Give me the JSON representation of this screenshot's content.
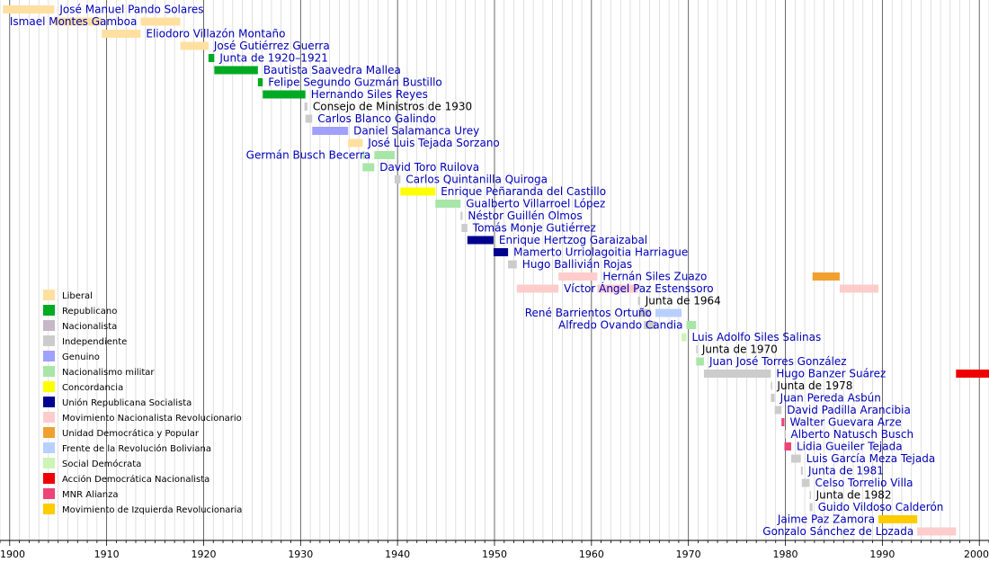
{
  "chart_data": {
    "type": "timeline",
    "x_range": [
      1899,
      2001
    ],
    "ticks": [
      {
        "value": 1900,
        "label": "1900"
      },
      {
        "value": 1910,
        "label": "1910"
      },
      {
        "value": 1920,
        "label": "1920"
      },
      {
        "value": 1930,
        "label": "1930"
      },
      {
        "value": 1940,
        "label": "1940"
      },
      {
        "value": 1950,
        "label": "1950"
      },
      {
        "value": 1960,
        "label": "1960"
      },
      {
        "value": 1970,
        "label": "1970"
      },
      {
        "value": 1980,
        "label": "1980"
      },
      {
        "value": 1990,
        "label": "1990"
      },
      {
        "value": 2000,
        "label": "2000"
      }
    ],
    "grid": "yearly minor, decade major",
    "legend": {
      "placement": "left",
      "items": [
        {
          "name": "Liberal",
          "color": "#ffe0a0"
        },
        {
          "name": "Republicano",
          "color": "#00aa22"
        },
        {
          "name": "Nacionalista",
          "color": "#c7b8c8"
        },
        {
          "name": "Independiente",
          "color": "#cccccc"
        },
        {
          "name": "Genuino",
          "color": "#a0a0ff"
        },
        {
          "name": "Nacionalismo militar",
          "color": "#a8e6a8"
        },
        {
          "name": "Concordancia",
          "color": "#ffff00"
        },
        {
          "name": "Unión Republicana Socialista",
          "color": "#000090"
        },
        {
          "name": "Movimiento Nacionalista Revolucionario",
          "color": "#ffcccc"
        },
        {
          "name": "Unidad Democrática y Popular",
          "color": "#f0a030"
        },
        {
          "name": "Frente de la Revolución Boliviana",
          "color": "#b8d0ff"
        },
        {
          "name": "Social Demócrata",
          "color": "#ccf5b8"
        },
        {
          "name": "Acción Democrática Nacionalista",
          "color": "#ee0000"
        },
        {
          "name": "MNR Alianza",
          "color": "#ee4477"
        },
        {
          "name": "Movimiento de Izquierda Revolucionaria",
          "color": "#ffcc00"
        }
      ]
    },
    "rows": [
      {
        "label": "José Manuel Pando Solares",
        "link": true,
        "periods": [
          {
            "start": 1899.3,
            "end": 1904.6,
            "color": "#ffe0a0"
          }
        ]
      },
      {
        "label": "Ismael Montes Gamboa",
        "link": true,
        "periods": [
          {
            "start": 1904.6,
            "end": 1909.5,
            "color": "#ffe0a0"
          },
          {
            "start": 1913.5,
            "end": 1917.6,
            "color": "#ffe0a0"
          }
        ]
      },
      {
        "label": "Eliodoro Villazón Montaño",
        "link": true,
        "periods": [
          {
            "start": 1909.5,
            "end": 1913.5,
            "color": "#ffe0a0"
          }
        ]
      },
      {
        "label": "José Gutiérrez Guerra",
        "link": true,
        "periods": [
          {
            "start": 1917.6,
            "end": 1920.5,
            "color": "#ffe0a0"
          }
        ]
      },
      {
        "label": "Junta de 1920–1921",
        "link": true,
        "periods": [
          {
            "start": 1920.5,
            "end": 1921.1,
            "color": "#00aa22"
          }
        ]
      },
      {
        "label": "Bautista Saavedra Mallea",
        "link": true,
        "periods": [
          {
            "start": 1921.1,
            "end": 1925.6,
            "color": "#00aa22"
          }
        ]
      },
      {
        "label": "Felipe Segundo Guzmán Bustillo",
        "link": true,
        "periods": [
          {
            "start": 1925.6,
            "end": 1926.1,
            "color": "#00aa22"
          }
        ]
      },
      {
        "label": "Hernando Siles Reyes",
        "link": true,
        "periods": [
          {
            "start": 1926.1,
            "end": 1930.5,
            "color": "#00aa22"
          }
        ]
      },
      {
        "label": "Consejo de Ministros de 1930",
        "link": false,
        "periods": [
          {
            "start": 1930.4,
            "end": 1930.7,
            "color": "#cccccc"
          }
        ]
      },
      {
        "label": "Carlos Blanco Galindo",
        "link": true,
        "periods": [
          {
            "start": 1930.5,
            "end": 1931.2,
            "color": "#cccccc"
          }
        ]
      },
      {
        "label": "Daniel Salamanca Urey",
        "link": true,
        "periods": [
          {
            "start": 1931.2,
            "end": 1934.9,
            "color": "#a0a0ff"
          }
        ]
      },
      {
        "label": "José Luis Tejada Sorzano",
        "link": true,
        "periods": [
          {
            "start": 1934.9,
            "end": 1936.4,
            "color": "#ffe0a0"
          }
        ]
      },
      {
        "label": "Germán Busch Becerra",
        "link": true,
        "periods": [
          {
            "start": 1936.4,
            "end": 1936.6,
            "color": "#a8e6a8"
          },
          {
            "start": 1937.6,
            "end": 1939.7,
            "color": "#a8e6a8"
          }
        ]
      },
      {
        "label": "David Toro Ruilova",
        "link": true,
        "periods": [
          {
            "start": 1936.4,
            "end": 1937.6,
            "color": "#a8e6a8"
          }
        ]
      },
      {
        "label": "Carlos Quintanilla Quiroga",
        "link": true,
        "periods": [
          {
            "start": 1939.7,
            "end": 1940.3,
            "color": "#cccccc"
          }
        ]
      },
      {
        "label": "Enrique Peñaranda del Castillo",
        "link": true,
        "periods": [
          {
            "start": 1940.3,
            "end": 1943.9,
            "color": "#ffff00"
          }
        ]
      },
      {
        "label": "Gualberto Villarroel López",
        "link": true,
        "periods": [
          {
            "start": 1943.9,
            "end": 1946.5,
            "color": "#a8e6a8"
          }
        ]
      },
      {
        "label": "Néstor Guillén Olmos",
        "link": true,
        "periods": [
          {
            "start": 1946.5,
            "end": 1946.7,
            "color": "#cccccc"
          }
        ]
      },
      {
        "label": "Tomás Monje Gutiérrez",
        "link": true,
        "periods": [
          {
            "start": 1946.6,
            "end": 1947.2,
            "color": "#cccccc"
          }
        ]
      },
      {
        "label": "Enrique Hertzog Garaizabal",
        "link": true,
        "periods": [
          {
            "start": 1947.2,
            "end": 1949.9,
            "color": "#000090"
          }
        ]
      },
      {
        "label": "Mamerto Urriolagoitia Harriague",
        "link": true,
        "periods": [
          {
            "start": 1949.9,
            "end": 1951.4,
            "color": "#000090"
          }
        ]
      },
      {
        "label": "Hugo Ballivián Rojas",
        "link": true,
        "periods": [
          {
            "start": 1951.4,
            "end": 1952.3,
            "color": "#cccccc"
          }
        ]
      },
      {
        "label": "Hernán Siles Zuazo",
        "link": true,
        "periods": [
          {
            "start": 1956.6,
            "end": 1960.6,
            "color": "#ffcccc"
          },
          {
            "start": 1982.8,
            "end": 1985.6,
            "color": "#f0a030"
          }
        ]
      },
      {
        "label": "Víctor Ángel Paz Estenssoro",
        "link": true,
        "periods": [
          {
            "start": 1952.3,
            "end": 1956.6,
            "color": "#ffcccc"
          },
          {
            "start": 1960.6,
            "end": 1964.8,
            "color": "#ffcccc"
          },
          {
            "start": 1985.6,
            "end": 1989.6,
            "color": "#ffcccc"
          }
        ]
      },
      {
        "label": "Junta de 1964",
        "link": false,
        "periods": [
          {
            "start": 1964.8,
            "end": 1965.0,
            "color": "#cccccc"
          }
        ]
      },
      {
        "label": "René Barrientos Ortuño",
        "link": true,
        "periods": [
          {
            "start": 1964.8,
            "end": 1965.4,
            "color": "#cccccc"
          },
          {
            "start": 1965.4,
            "end": 1966.1,
            "color": "#cccccc"
          },
          {
            "start": 1966.6,
            "end": 1969.3,
            "color": "#b8d0ff"
          }
        ]
      },
      {
        "label": "Alfredo Ovando Candia",
        "link": true,
        "periods": [
          {
            "start": 1965.4,
            "end": 1966.0,
            "color": "#cccccc"
          },
          {
            "start": 1966.0,
            "end": 1966.6,
            "color": "#cccccc"
          },
          {
            "start": 1969.8,
            "end": 1970.8,
            "color": "#a8e6a8"
          }
        ]
      },
      {
        "label": "Luis Adolfo Siles Salinas",
        "link": true,
        "periods": [
          {
            "start": 1969.3,
            "end": 1969.8,
            "color": "#ccf5b8"
          }
        ]
      },
      {
        "label": "Junta de 1970",
        "link": false,
        "periods": [
          {
            "start": 1970.8,
            "end": 1970.85,
            "color": "#cccccc"
          }
        ]
      },
      {
        "label": "Juan José Torres González",
        "link": true,
        "periods": [
          {
            "start": 1970.8,
            "end": 1971.6,
            "color": "#a8e6a8"
          }
        ]
      },
      {
        "label": "Hugo Banzer Suárez",
        "link": true,
        "periods": [
          {
            "start": 1971.6,
            "end": 1978.5,
            "color": "#cccccc"
          },
          {
            "start": 1997.6,
            "end": 2001,
            "color": "#ee0000"
          }
        ]
      },
      {
        "label": "Junta de 1978",
        "link": false,
        "periods": [
          {
            "start": 1978.5,
            "end": 1978.6,
            "color": "#cccccc"
          }
        ]
      },
      {
        "label": "Juan Pereda Asbún",
        "link": true,
        "periods": [
          {
            "start": 1978.5,
            "end": 1978.9,
            "color": "#cccccc"
          }
        ]
      },
      {
        "label": "David Padilla Arancibia",
        "link": true,
        "periods": [
          {
            "start": 1978.9,
            "end": 1979.6,
            "color": "#cccccc"
          }
        ]
      },
      {
        "label": "Walter Guevara Arze",
        "link": true,
        "periods": [
          {
            "start": 1979.6,
            "end": 1979.9,
            "color": "#ee4477"
          }
        ]
      },
      {
        "label": "Alberto Natusch Busch",
        "link": true,
        "periods": [
          {
            "start": 1979.9,
            "end": 1980.0,
            "color": "#cccccc"
          }
        ]
      },
      {
        "label": "Lidia Gueiler Tejada",
        "link": true,
        "periods": [
          {
            "start": 1979.9,
            "end": 1980.6,
            "color": "#ee4477"
          }
        ]
      },
      {
        "label": "Luis García Meza Tejada",
        "link": true,
        "periods": [
          {
            "start": 1980.6,
            "end": 1981.6,
            "color": "#cccccc"
          }
        ]
      },
      {
        "label": "Junta de 1981",
        "link": true,
        "periods": [
          {
            "start": 1981.6,
            "end": 1981.8,
            "color": "#cccccc"
          }
        ]
      },
      {
        "label": "Celso Torrelio Villa",
        "link": true,
        "periods": [
          {
            "start": 1981.7,
            "end": 1982.5,
            "color": "#cccccc"
          }
        ]
      },
      {
        "label": "Junta de 1982",
        "link": false,
        "periods": [
          {
            "start": 1982.5,
            "end": 1982.6,
            "color": "#cccccc"
          }
        ]
      },
      {
        "label": "Guido Vildoso Calderón",
        "link": true,
        "periods": [
          {
            "start": 1982.5,
            "end": 1982.8,
            "color": "#cccccc"
          }
        ]
      },
      {
        "label": "Jaime Paz Zamora",
        "link": true,
        "periods": [
          {
            "start": 1989.6,
            "end": 1993.6,
            "color": "#ffcc00"
          }
        ]
      },
      {
        "label": "Gonzalo Sánchez de Lozada",
        "link": true,
        "periods": [
          {
            "start": 1993.6,
            "end": 1997.6,
            "color": "#ffcccc"
          }
        ]
      }
    ]
  }
}
